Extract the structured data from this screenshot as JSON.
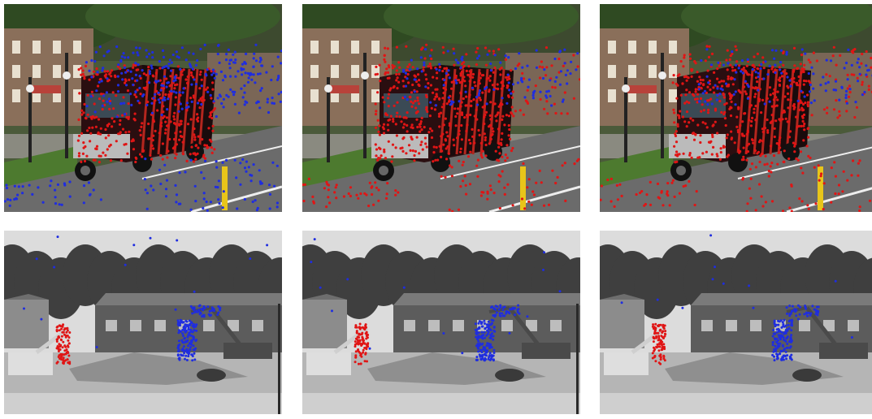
{
  "figure": {
    "rows": [
      {
        "scene": "street-truck",
        "panels": [
          {
            "name": "truck-panel-1",
            "point_colors": [
              "#1f2de0",
              "#e01515"
            ],
            "background_point_color": "#1f2de0"
          },
          {
            "name": "truck-panel-2",
            "point_colors": [
              "#1f2de0",
              "#e01515"
            ],
            "background_point_color": "#e01515"
          },
          {
            "name": "truck-panel-3",
            "point_colors": [
              "#1f2de0",
              "#e01515"
            ],
            "background_point_color": "#e01515"
          }
        ]
      },
      {
        "scene": "construction-site",
        "panels": [
          {
            "name": "construction-panel-1",
            "point_colors": [
              "#e01515",
              "#1f2de0"
            ]
          },
          {
            "name": "construction-panel-2",
            "point_colors": [
              "#e01515",
              "#1f2de0"
            ]
          },
          {
            "name": "construction-panel-3",
            "point_colors": [
              "#e01515",
              "#1f2de0"
            ]
          }
        ]
      }
    ],
    "colors": {
      "blue_points": "#1f2de0",
      "red_points": "#e01515",
      "truck_body": "#2a0e10",
      "truck_stripes": "#b3261e",
      "sky_gray": "#dcdcdc"
    }
  }
}
